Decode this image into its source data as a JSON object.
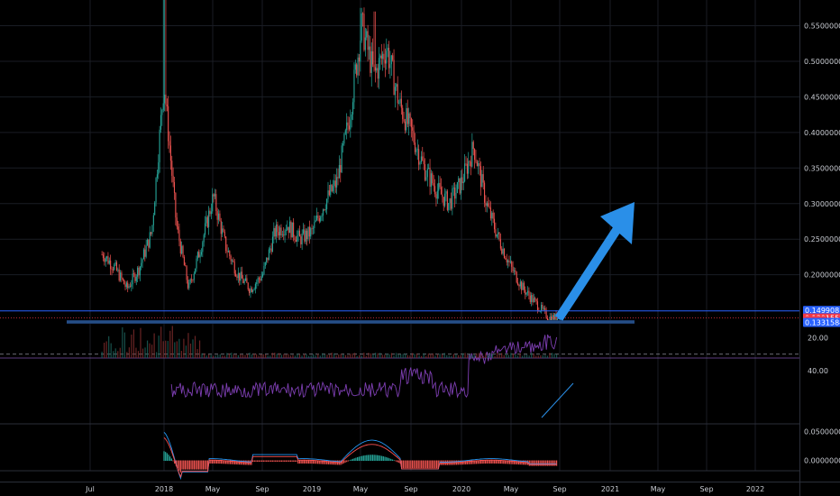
{
  "chart_data": {
    "type": "candlestick",
    "price_axis": {
      "ticks": [
        "0.55000000",
        "0.50000000",
        "0.45000000",
        "0.40000000",
        "0.35000000",
        "0.30000000",
        "0.25000000",
        "0.20000000"
      ],
      "tick_values": [
        0.55,
        0.5,
        0.45,
        0.4,
        0.35,
        0.3,
        0.25,
        0.2
      ],
      "price_tags": [
        {
          "label": "0.14990814",
          "value": 0.1499,
          "color": "#2962ff"
        },
        {
          "label": "0.13915525",
          "value": 0.1392,
          "color": "#f23645"
        },
        {
          "label": "2d 11h",
          "value": 0.1355,
          "color": "#f23645"
        },
        {
          "label": "0.13315840",
          "value": 0.1331,
          "color": "#2962ff"
        }
      ]
    },
    "rsi_axis": {
      "ticks": [
        "40.00",
        "20.00"
      ],
      "tick_values": [
        40,
        20
      ],
      "bands": [
        30,
        70
      ]
    },
    "macd_axis": {
      "ticks": [
        "0.05000000",
        "0.00000000"
      ],
      "tick_values": [
        0.05,
        0.0
      ]
    },
    "time_axis": {
      "ticks": [
        "Jul",
        "2018",
        "May",
        "Sep",
        "2019",
        "May",
        "Sep",
        "2020",
        "May",
        "Sep",
        "2021",
        "May",
        "Sep",
        "2022"
      ]
    },
    "price_series": {
      "x": [
        "2017-07",
        "2017-08",
        "2017-09",
        "2017-10",
        "2017-11",
        "2017-12",
        "2018-01",
        "2018-02",
        "2018-03",
        "2018-04",
        "2018-05",
        "2018-06",
        "2018-07",
        "2018-08",
        "2018-09",
        "2018-10",
        "2018-11",
        "2018-12",
        "2019-01",
        "2019-02",
        "2019-03",
        "2019-04",
        "2019-05",
        "2019-06",
        "2019-07",
        "2019-08",
        "2019-09",
        "2019-10",
        "2019-11",
        "2019-12",
        "2020-01",
        "2020-02",
        "2020-03",
        "2020-04",
        "2020-05",
        "2020-06",
        "2020-07",
        "2020-08"
      ],
      "close": [
        0.19,
        0.23,
        0.21,
        0.18,
        0.21,
        0.26,
        0.47,
        0.27,
        0.18,
        0.24,
        0.31,
        0.24,
        0.2,
        0.18,
        0.2,
        0.26,
        0.27,
        0.25,
        0.26,
        0.3,
        0.33,
        0.42,
        0.55,
        0.48,
        0.52,
        0.44,
        0.4,
        0.35,
        0.32,
        0.3,
        0.33,
        0.38,
        0.3,
        0.25,
        0.21,
        0.18,
        0.16,
        0.14
      ]
    },
    "annotations": [
      {
        "type": "horizontal_line",
        "value": 0.1499
      },
      {
        "type": "support_zone",
        "value": 0.1331
      },
      {
        "type": "arrow",
        "from": {
          "x": "2020-09",
          "y": 0.14
        },
        "to": {
          "x": "2021-02",
          "y": 0.3
        }
      },
      {
        "type": "divergence_line",
        "pane": "rsi"
      }
    ]
  }
}
